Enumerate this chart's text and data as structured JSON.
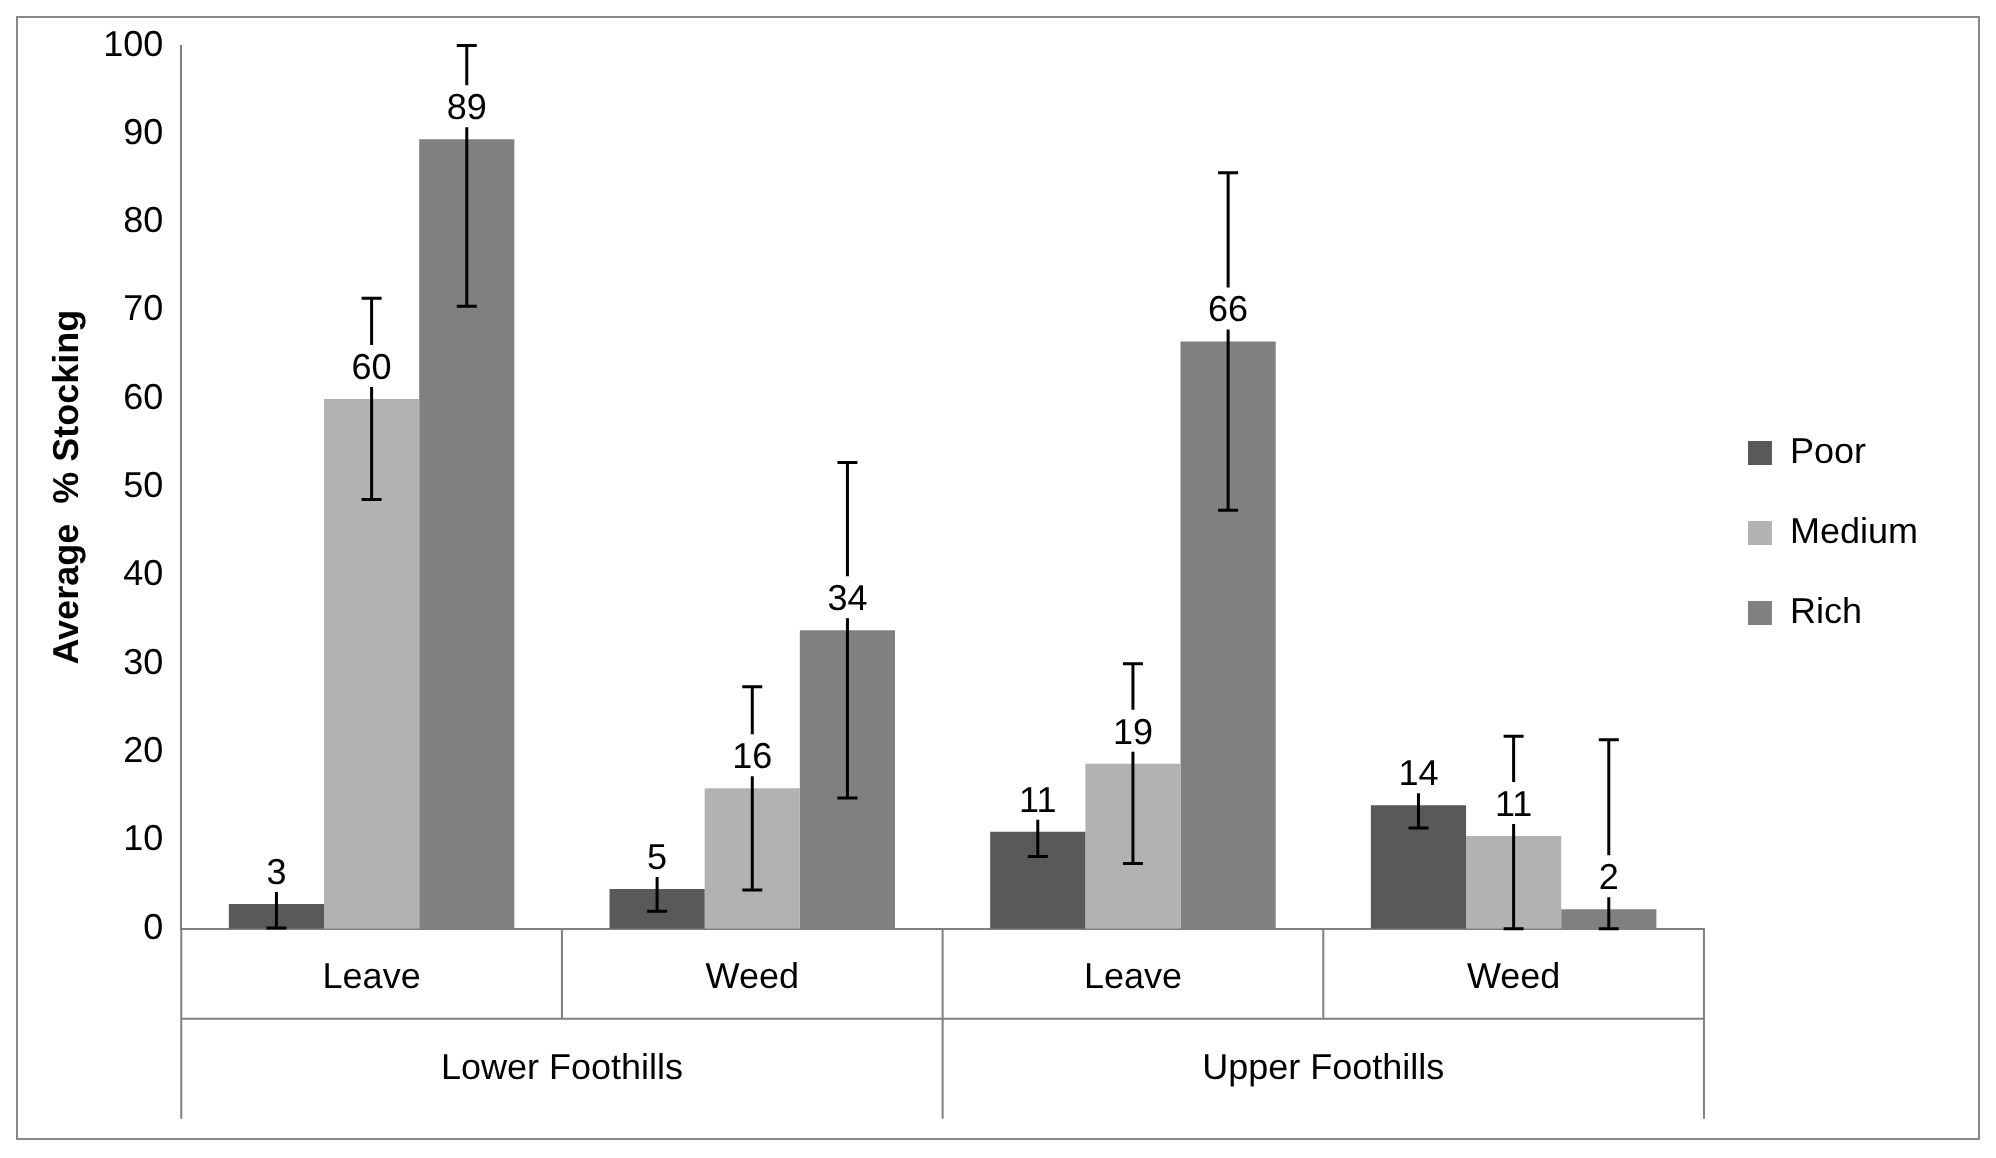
{
  "chart_data": {
    "type": "bar",
    "ylabel": "Average  % Stocking",
    "categories": [
      "Leave",
      "Weed",
      "Leave",
      "Weed"
    ],
    "annotations": [
      "Lower Foothills",
      "Upper Foothills"
    ],
    "series": [
      {
        "name": "Poor",
        "color": "#595959",
        "values": [
          2.8,
          4.5,
          11,
          14
        ],
        "errors": [
          [
            0.1,
            5.5
          ],
          [
            2,
            7
          ],
          [
            8.2,
            13.8
          ],
          [
            11.4,
            16.6
          ]
        ],
        "value_labels": [
          "3",
          "5",
          "11",
          "14"
        ]
      },
      {
        "name": "Medium",
        "color": "#b2b2b2",
        "values": [
          60,
          15.9,
          18.7,
          10.5
        ],
        "errors": [
          [
            48.6,
            71.4
          ],
          [
            4.4,
            27.4
          ],
          [
            7.4,
            30
          ],
          [
            0,
            21.8
          ]
        ],
        "value_labels": [
          "60",
          "16",
          "19",
          "11"
        ]
      },
      {
        "name": "Rich",
        "color": "#808080",
        "values": [
          89.4,
          33.8,
          66.5,
          2.2
        ],
        "errors": [
          [
            70.5,
            100
          ],
          [
            14.8,
            52.8
          ],
          [
            47.4,
            85.6
          ],
          [
            0,
            21.4
          ]
        ],
        "value_labels": [
          "89",
          "34",
          "66",
          "2"
        ]
      }
    ],
    "ylim": [
      0,
      100
    ],
    "yticks": [
      0,
      10,
      20,
      30,
      40,
      50,
      60,
      70,
      80,
      90,
      100
    ],
    "grid": false,
    "legend": "right"
  }
}
